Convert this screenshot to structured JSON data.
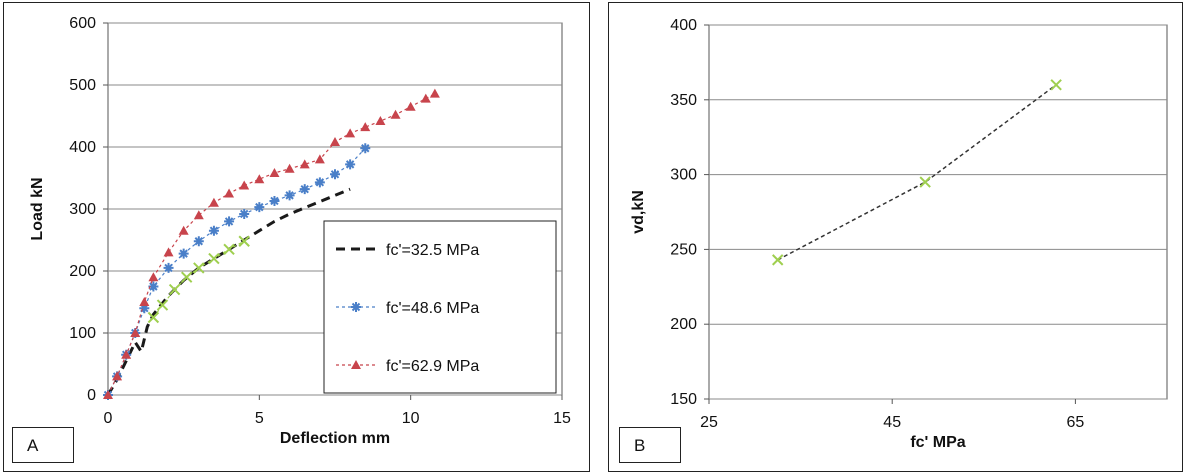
{
  "chart_data": [
    {
      "type": "scatter",
      "panel_label": "A",
      "xlabel": "Deflection mm",
      "ylabel": "Load kN",
      "xlim": [
        0,
        15
      ],
      "ylim": [
        0,
        600
      ],
      "xticks": [
        0,
        5,
        10,
        15
      ],
      "yticks": [
        0,
        100,
        200,
        300,
        400,
        500,
        600
      ],
      "grid": "horizontal",
      "legend_position": "right-center",
      "series": [
        {
          "name": "fc'=32.5 MPa",
          "color": "#1a1a1a",
          "marker": "dash",
          "x": [
            0,
            0.3,
            0.6,
            0.9,
            1.1,
            1.3,
            1.5,
            2.0,
            2.5,
            3.0,
            3.5,
            4.0,
            4.5,
            5.0,
            5.5,
            6.0,
            6.5,
            7.0,
            7.5,
            8.0
          ],
          "y": [
            0,
            25,
            55,
            85,
            70,
            110,
            130,
            160,
            185,
            205,
            220,
            235,
            250,
            265,
            280,
            292,
            302,
            312,
            322,
            332
          ]
        },
        {
          "name": "fc'=48.6 MPa",
          "color": "#4a7fc8",
          "marker": "star",
          "x": [
            0,
            0.3,
            0.6,
            0.9,
            1.2,
            1.5,
            2.0,
            2.5,
            3.0,
            3.5,
            4.0,
            4.5,
            5.0,
            5.5,
            6.0,
            6.5,
            7.0,
            7.5,
            8.0,
            8.5
          ],
          "y": [
            0,
            30,
            65,
            100,
            140,
            175,
            205,
            228,
            248,
            265,
            280,
            292,
            303,
            313,
            322,
            332,
            343,
            356,
            372,
            398
          ]
        },
        {
          "name": "fc'=62.9 MPa",
          "color": "#c8444c",
          "marker": "triangle",
          "x": [
            0,
            0.3,
            0.6,
            0.9,
            1.2,
            1.5,
            2.0,
            2.5,
            3.0,
            3.5,
            4.0,
            4.5,
            5.0,
            5.5,
            6.0,
            6.5,
            7.0,
            7.5,
            8.0,
            8.5,
            9.0,
            9.5,
            10.0,
            10.5,
            10.8
          ],
          "y": [
            0,
            30,
            65,
            100,
            150,
            190,
            230,
            265,
            290,
            310,
            325,
            338,
            348,
            358,
            365,
            372,
            380,
            408,
            422,
            432,
            442,
            452,
            465,
            478,
            486
          ]
        },
        {
          "name": "",
          "color": "#9fcf4f",
          "marker": "x",
          "x": [
            1.5,
            1.8,
            2.2,
            2.6,
            3.0,
            3.5,
            4.0,
            4.5
          ],
          "y": [
            125,
            145,
            170,
            190,
            205,
            220,
            235,
            248
          ]
        }
      ],
      "legend": {
        "entries": [
          "fc'=32.5 MPa",
          "fc'=48.6 MPa",
          "fc'=62.9 MPa"
        ]
      }
    },
    {
      "type": "line",
      "panel_label": "B",
      "xlabel": "fc' MPa",
      "ylabel": "vd,kN",
      "xlim": [
        25,
        75
      ],
      "ylim": [
        150,
        400
      ],
      "xticks": [
        25,
        45,
        65
      ],
      "yticks": [
        150,
        200,
        250,
        300,
        350,
        400
      ],
      "grid": "horizontal",
      "series": [
        {
          "name": "",
          "color": "#9fcf4f",
          "line_color": "#333333",
          "marker": "x",
          "x": [
            32.5,
            48.6,
            62.9
          ],
          "y": [
            243,
            295,
            360
          ]
        }
      ]
    }
  ]
}
